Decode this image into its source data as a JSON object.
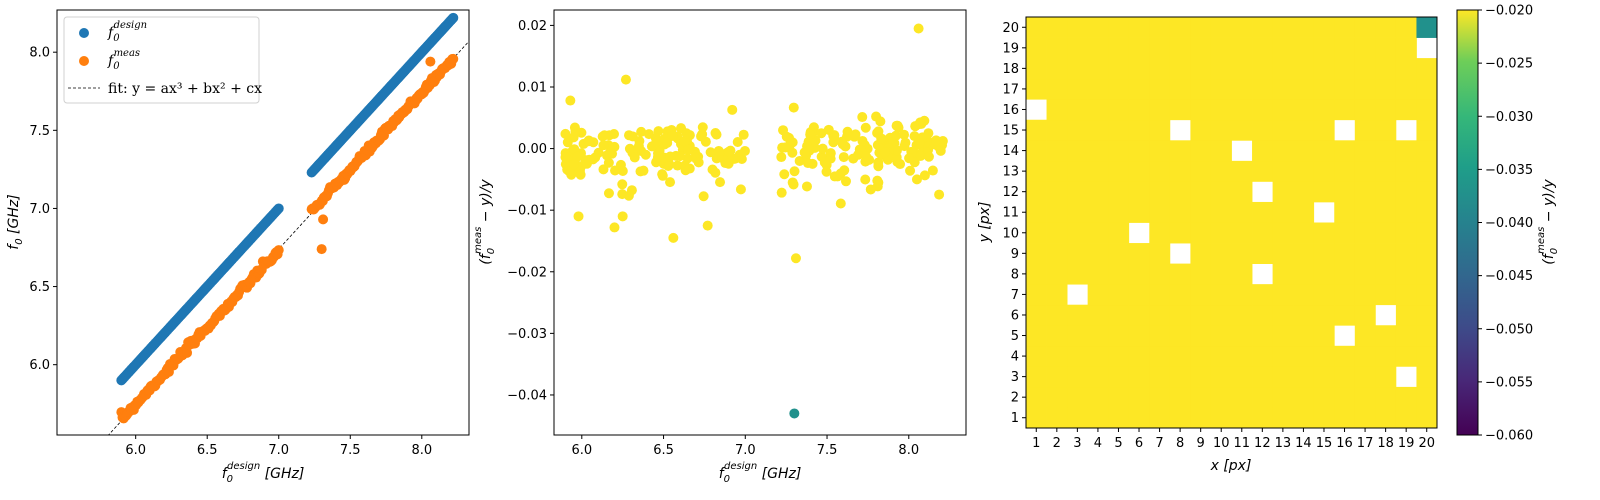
{
  "colors": {
    "design": "#1f77b4",
    "meas": "#ff7f0e",
    "fit": "#000000",
    "viridis_yellow": "#fde725",
    "viridis_teal": "#21918c"
  },
  "chart_data": [
    {
      "type": "scatter",
      "xlabel": "f0^design [GHz]",
      "ylabel": "f0 [GHz]",
      "xlim": [
        5.45,
        8.33
      ],
      "ylim": [
        5.55,
        8.27
      ],
      "xticks": [
        "6.0",
        "6.5",
        "7.0",
        "7.5",
        "8.0"
      ],
      "yticks": [
        "6.0",
        "6.5",
        "7.0",
        "7.5",
        "8.0"
      ],
      "legend_position": "top-left",
      "legend": [
        {
          "key": "design",
          "label_main": "f",
          "label_sub": "0",
          "label_sup": "design"
        },
        {
          "key": "meas",
          "label_main": "f",
          "label_sub": "0",
          "label_sup": "meas"
        },
        {
          "key": "fit",
          "label": "fit: y = ax³ + bx² + cx"
        }
      ],
      "series": [
        {
          "name": "f0^design",
          "segments": [
            {
              "x": [
                5.9,
                7.0
              ],
              "y": [
                5.9,
                7.0
              ]
            },
            {
              "x": [
                7.23,
                8.22
              ],
              "y": [
                7.23,
                8.22
              ]
            }
          ]
        },
        {
          "name": "f0^meas",
          "segments": [
            {
              "x": [
                5.9,
                7.0
              ],
              "y": [
                5.65,
                6.73
              ]
            },
            {
              "x": [
                7.23,
                8.22
              ],
              "y": [
                6.98,
                7.96
              ]
            }
          ],
          "outliers": [
            {
              "x": 7.3,
              "y": 6.74
            },
            {
              "x": 7.31,
              "y": 6.93
            },
            {
              "x": 8.06,
              "y": 7.94
            }
          ]
        }
      ],
      "fit_line": {
        "x": [
          5.78,
          8.33
        ],
        "y": [
          5.52,
          8.07
        ]
      }
    },
    {
      "type": "scatter",
      "xlabel": "f0^design [GHz]",
      "ylabel": "(f0^meas − y)/y",
      "xlim": [
        5.83,
        8.35
      ],
      "ylim": [
        -0.0465,
        0.0225
      ],
      "xticks": [
        "6.0",
        "6.5",
        "7.0",
        "7.5",
        "8.0"
      ],
      "yticks": [
        "0.02",
        "0.01",
        "0.00",
        "−0.01",
        "−0.02",
        "−0.03",
        "−0.04"
      ],
      "ytick_values": [
        0.02,
        0.01,
        0.0,
        -0.01,
        -0.02,
        -0.03,
        -0.04
      ],
      "xtick_values": [
        6.0,
        6.5,
        7.0,
        7.5,
        8.0
      ],
      "ranges": [
        [
          5.9,
          7.0
        ],
        [
          7.22,
          8.22
        ]
      ],
      "outliers": [
        {
          "x": 7.3,
          "y": -0.043,
          "color": "teal"
        },
        {
          "x": 7.31,
          "y": -0.0178
        },
        {
          "x": 8.06,
          "y": 0.0195
        },
        {
          "x": 6.27,
          "y": 0.0112
        },
        {
          "x": 5.93,
          "y": 0.0078
        },
        {
          "x": 7.8,
          "y": 0.0052
        },
        {
          "x": 7.29,
          "y": -0.0055
        },
        {
          "x": 6.56,
          "y": -0.0145
        },
        {
          "x": 6.77,
          "y": -0.0125
        },
        {
          "x": 6.2,
          "y": -0.0128
        },
        {
          "x": 6.25,
          "y": -0.011
        },
        {
          "x": 5.98,
          "y": -0.011
        },
        {
          "x": 8.05,
          "y": -0.005
        },
        {
          "x": 8.12,
          "y": 0.0025
        }
      ]
    },
    {
      "type": "heatmap",
      "xlabel": "x [px]",
      "ylabel": "y [px]",
      "x_categories": [
        "1",
        "2",
        "3",
        "4",
        "5",
        "6",
        "7",
        "8",
        "9",
        "10",
        "11",
        "12",
        "13",
        "14",
        "15",
        "16",
        "17",
        "18",
        "19",
        "20"
      ],
      "y_categories": [
        "1",
        "2",
        "3",
        "4",
        "5",
        "6",
        "7",
        "8",
        "9",
        "10",
        "11",
        "12",
        "13",
        "14",
        "15",
        "16",
        "17",
        "18",
        "19",
        "20"
      ],
      "fill_value": -0.02,
      "missing_cells": [
        [
          1,
          16
        ],
        [
          3,
          7
        ],
        [
          6,
          10
        ],
        [
          8,
          15
        ],
        [
          8,
          9
        ],
        [
          11,
          14
        ],
        [
          12,
          12
        ],
        [
          12,
          8
        ],
        [
          15,
          11
        ],
        [
          16,
          15
        ],
        [
          16,
          5
        ],
        [
          18,
          6
        ],
        [
          19,
          15
        ],
        [
          19,
          3
        ],
        [
          20,
          19
        ]
      ],
      "special_cells": [
        {
          "x": 20,
          "y": 20,
          "value": -0.043
        }
      ],
      "colorbar": {
        "label": "(f0^meas − y)/y",
        "range": [
          -0.06,
          -0.02
        ],
        "ticks": [
          "−0.020",
          "−0.025",
          "−0.030",
          "−0.035",
          "−0.040",
          "−0.045",
          "−0.050",
          "−0.055",
          "−0.060"
        ],
        "tick_values": [
          -0.02,
          -0.025,
          -0.03,
          -0.035,
          -0.04,
          -0.045,
          -0.05,
          -0.055,
          -0.06
        ]
      }
    }
  ]
}
